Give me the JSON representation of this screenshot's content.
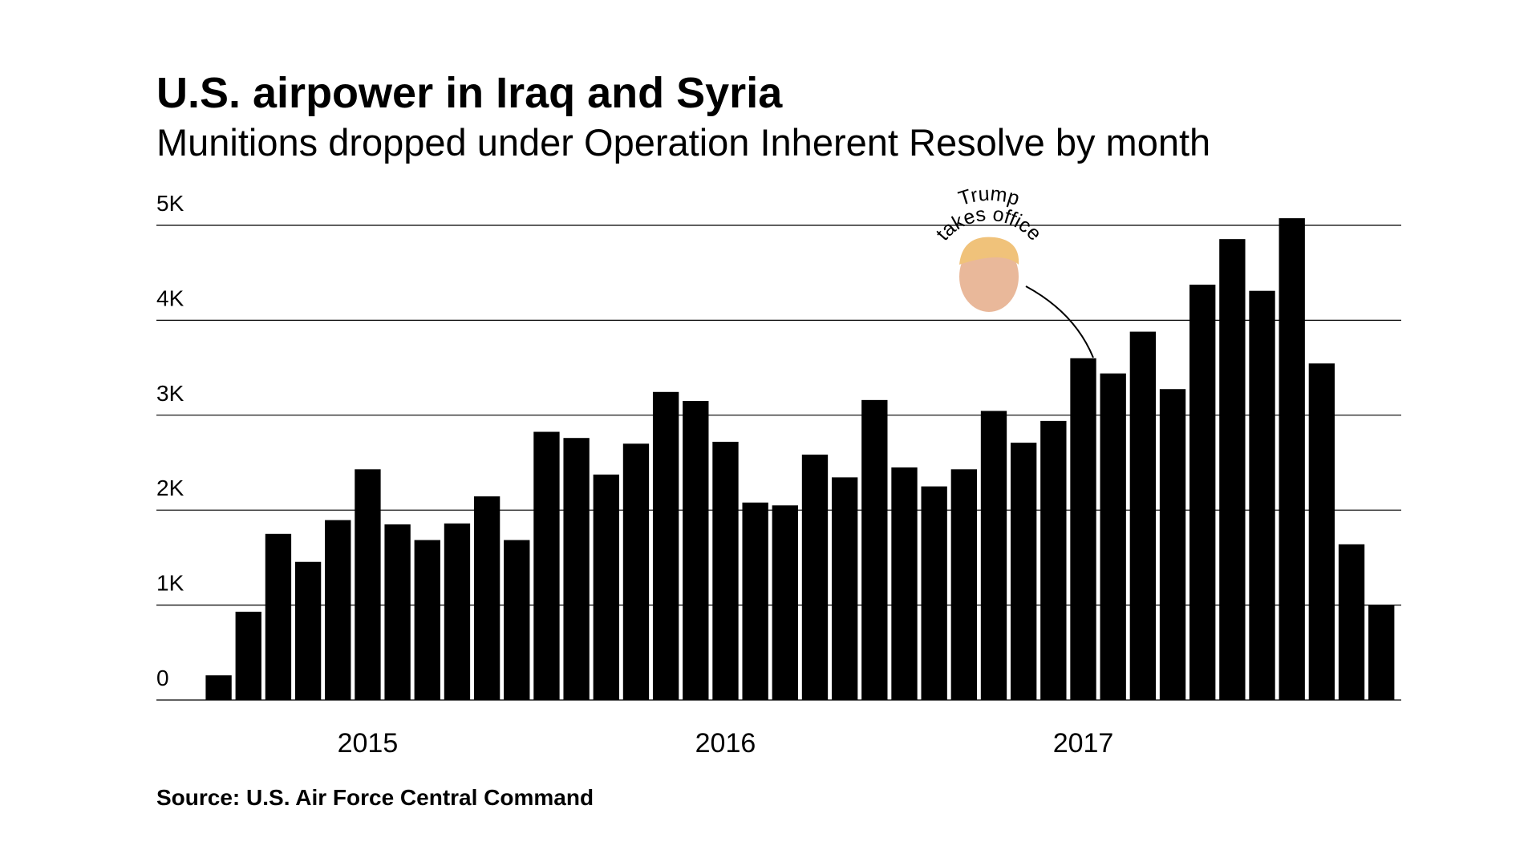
{
  "chart_data": {
    "type": "bar",
    "title": "U.S. airpower in Iraq and Syria",
    "subtitle": "Munitions dropped under Operation Inherent Resolve by month",
    "source": "Source: U.S. Air Force Central Command",
    "annotation": [
      "Trump",
      "takes office"
    ],
    "categories": [
      null,
      null,
      null,
      null,
      null,
      "2015",
      null,
      null,
      null,
      null,
      null,
      null,
      null,
      null,
      null,
      null,
      null,
      "2016",
      null,
      null,
      null,
      null,
      null,
      null,
      null,
      null,
      null,
      null,
      null,
      "2017",
      null,
      null,
      null,
      null,
      null,
      null,
      null,
      null,
      null,
      null
    ],
    "values": [
      260,
      930,
      1750,
      1455,
      1895,
      2430,
      1850,
      1685,
      1860,
      2145,
      1685,
      2825,
      2760,
      2375,
      2700,
      3245,
      3150,
      2720,
      2080,
      2050,
      2585,
      2345,
      3160,
      2450,
      2250,
      2430,
      3045,
      2710,
      2940,
      3600,
      3440,
      3880,
      3275,
      4375,
      4855,
      4310,
      5075,
      3545,
      1640,
      1005
    ],
    "color": "#000000",
    "ylim": [
      0,
      5000
    ],
    "yticks": [
      0,
      {
        "value": 1000,
        "label": "1K"
      },
      {
        "value": 2000,
        "label": "2K"
      },
      {
        "value": 3000,
        "label": "3K"
      },
      {
        "value": 4000,
        "label": "4K"
      },
      {
        "value": 5000,
        "label": "5K"
      }
    ],
    "grid": true
  }
}
